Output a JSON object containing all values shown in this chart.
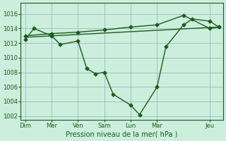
{
  "xlabel": "Pression niveau de la mer( hPa )",
  "bg_color": "#cceedd",
  "grid_color": "#99bbbb",
  "line_color": "#1a5c1a",
  "ylim": [
    1001.5,
    1017.5
  ],
  "yticks": [
    1002,
    1004,
    1006,
    1008,
    1010,
    1012,
    1014,
    1016
  ],
  "xtick_labels": [
    "Dim",
    "Mer",
    "Ven",
    "Sam",
    "Lun",
    "Mar",
    "Jeu"
  ],
  "xtick_positions": [
    0,
    3,
    6,
    9,
    12,
    15,
    21
  ],
  "xlim": [
    -0.5,
    22.5
  ],
  "line1_x": [
    0,
    1,
    3,
    4,
    6,
    7,
    8,
    9,
    10,
    12,
    13,
    15,
    16,
    18,
    19,
    21,
    22
  ],
  "line1_y": [
    1012.5,
    1014.0,
    1013.0,
    1011.8,
    1012.3,
    1008.5,
    1007.8,
    1008.0,
    1005.0,
    1003.5,
    1002.2,
    1006.0,
    1011.5,
    1014.5,
    1015.3,
    1015.0,
    1014.2
  ],
  "line2_x": [
    0,
    3,
    6,
    9,
    12,
    15,
    18,
    21,
    22
  ],
  "line2_y": [
    1013.0,
    1013.3,
    1013.5,
    1013.8,
    1014.2,
    1014.5,
    1015.8,
    1014.0,
    1014.2
  ],
  "line3_x": [
    0,
    22
  ],
  "line3_y": [
    1012.8,
    1014.2
  ],
  "markersize": 2.5,
  "linewidth": 1.0
}
